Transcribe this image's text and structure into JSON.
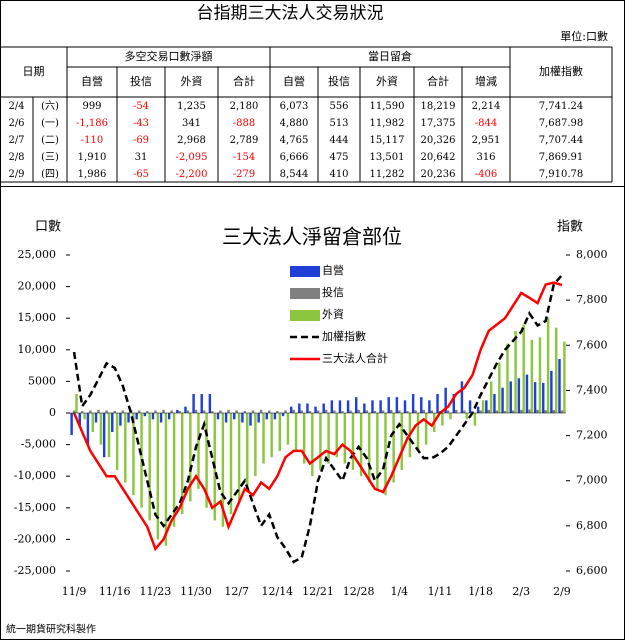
{
  "table": {
    "title": "台指期三大法人交易狀況",
    "unit": "單位:口數",
    "headers": {
      "date": "日期",
      "group1": "多空交易口數淨額",
      "group2": "當日留倉",
      "index": "加權指數",
      "sub1": [
        "自營",
        "投信",
        "外資",
        "合計"
      ],
      "sub2": [
        "自營",
        "投信",
        "外資",
        "合計",
        "增減"
      ]
    },
    "rows": [
      [
        "2/4",
        "(六)",
        "999",
        "-54",
        "1,235",
        "2,180",
        "6,073",
        "556",
        "11,590",
        "18,219",
        "2,214",
        "7,741.24"
      ],
      [
        "2/6",
        "(一)",
        "-1,186",
        "-43",
        "341",
        "-888",
        "4,880",
        "513",
        "11,982",
        "17,375",
        "-844",
        "7,687.98"
      ],
      [
        "2/7",
        "(二)",
        "-110",
        "-69",
        "2,968",
        "2,789",
        "4,765",
        "444",
        "15,117",
        "20,326",
        "2,951",
        "7,707.44"
      ],
      [
        "2/8",
        "(三)",
        "1,910",
        "31",
        "-2,095",
        "-154",
        "6,666",
        "475",
        "13,501",
        "20,642",
        "316",
        "7,869.91"
      ],
      [
        "2/9",
        "(四)",
        "1,986",
        "-65",
        "-2,200",
        "-279",
        "8,544",
        "410",
        "11,282",
        "20,236",
        "-406",
        "7,910.78"
      ]
    ]
  },
  "chart_data": {
    "type": "combo",
    "title": "三大法人淨留倉部位",
    "ylabel": "口數",
    "y2label": "指數",
    "footer": "統一期貨研究科製作",
    "categories": [
      "11/9",
      null,
      null,
      null,
      null,
      "11/16",
      null,
      null,
      null,
      null,
      "11/23",
      null,
      null,
      null,
      null,
      "11/30",
      null,
      null,
      null,
      null,
      "12/7",
      null,
      null,
      null,
      null,
      "12/14",
      null,
      null,
      null,
      null,
      "12/21",
      null,
      null,
      null,
      null,
      "12/28",
      null,
      null,
      null,
      null,
      "1/4",
      null,
      null,
      null,
      null,
      "1/11",
      null,
      null,
      null,
      null,
      "1/18",
      null,
      null,
      null,
      null,
      "2/3",
      null,
      null,
      null,
      null,
      "2/9"
    ],
    "ylim": [
      -25000,
      25000
    ],
    "yticks": [
      {
        "value": 25000,
        "label": "25,000"
      },
      {
        "value": 20000,
        "label": "20,000"
      },
      {
        "value": 15000,
        "label": "15,000"
      },
      {
        "value": 10000,
        "label": "10,000"
      },
      {
        "value": 5000,
        "label": "5000"
      },
      0,
      {
        "value": -5000,
        "label": "-5,000"
      },
      {
        "value": -10000,
        "label": "-10,000"
      },
      {
        "value": -15000,
        "label": "-15,000"
      },
      {
        "value": -20000,
        "label": "-20,000"
      },
      {
        "value": -25000,
        "label": "-25,000"
      }
    ],
    "y2lim": [
      6600,
      8000
    ],
    "y2ticks": [
      {
        "value": 8000,
        "label": "8,000"
      },
      {
        "value": 7800,
        "label": "7,800"
      },
      {
        "value": 7600,
        "label": "7,600"
      },
      {
        "value": 7400,
        "label": "7,400"
      },
      {
        "value": 7200,
        "label": "7,200"
      },
      {
        "value": 7000,
        "label": "7,000"
      },
      {
        "value": 6800,
        "label": "6,800"
      },
      {
        "value": 6600,
        "label": "6,600"
      }
    ],
    "series": [
      {
        "name": "自營",
        "kind": "bar",
        "color": "#1f3fd6",
        "values": [
          -3500,
          -2000,
          -5000,
          -1500,
          -7000,
          -3000,
          -2000,
          -1500,
          -1000,
          -500,
          -1000,
          -1500,
          -1000,
          500,
          1000,
          3000,
          3000,
          3000,
          -1000,
          -1500,
          -1000,
          -1500,
          -2000,
          -1500,
          -1000,
          -1000,
          -500,
          1000,
          1500,
          1500,
          1000,
          1500,
          2000,
          2000,
          2000,
          2500,
          1500,
          2000,
          2000,
          2500,
          2500,
          2000,
          3000,
          2500,
          2000,
          3000,
          4000,
          3000,
          5000,
          2000,
          1000,
          2000,
          3000,
          4000,
          5000,
          5500,
          6073,
          4880,
          4765,
          6666,
          8544
        ]
      },
      {
        "name": "投信",
        "kind": "bar",
        "color": "#808080",
        "values": [
          400,
          300,
          400,
          500,
          400,
          300,
          400,
          500,
          400,
          300,
          400,
          500,
          400,
          300,
          400,
          500,
          400,
          300,
          400,
          500,
          400,
          300,
          400,
          500,
          400,
          300,
          400,
          500,
          400,
          300,
          400,
          500,
          400,
          300,
          400,
          500,
          400,
          300,
          400,
          500,
          400,
          300,
          400,
          500,
          400,
          300,
          400,
          500,
          400,
          300,
          400,
          500,
          400,
          300,
          400,
          500,
          556,
          513,
          444,
          475,
          410
        ]
      },
      {
        "name": "外資",
        "kind": "bar",
        "color": "#8cc63f",
        "values": [
          3000,
          -1000,
          -3000,
          -5000,
          -7000,
          -9000,
          -11000,
          -13000,
          -15000,
          -17000,
          -20000,
          -21000,
          -18000,
          -16000,
          -14000,
          -12000,
          -15000,
          -17000,
          -18000,
          -16000,
          -14000,
          -12000,
          -10000,
          -8000,
          -7000,
          -6000,
          -5000,
          -6000,
          -8000,
          -10000,
          -9000,
          -8000,
          -7000,
          -8000,
          -9000,
          -10000,
          -11000,
          -12000,
          -13000,
          -11000,
          -9000,
          -7000,
          -6000,
          -5000,
          -3000,
          -2000,
          -1000,
          0,
          -1000,
          -2000,
          2000,
          5000,
          8000,
          11000,
          13000,
          14000,
          11590,
          11982,
          15117,
          13501,
          11282
        ]
      },
      {
        "name": "加權指數",
        "kind": "line",
        "dash": true,
        "axis": "y2",
        "color": "#000000",
        "values": [
          7570,
          7330,
          7380,
          7450,
          7520,
          7500,
          7420,
          7300,
          7150,
          7000,
          6850,
          6800,
          6850,
          6900,
          7000,
          7150,
          7250,
          7100,
          6950,
          6900,
          6950,
          7000,
          6900,
          6800,
          6850,
          6750,
          6700,
          6640,
          6660,
          6800,
          7000,
          7100,
          7050,
          7000,
          7100,
          7150,
          7100,
          7000,
          7050,
          7200,
          7250,
          7200,
          7150,
          7100,
          7100,
          7120,
          7150,
          7200,
          7250,
          7300,
          7380,
          7450,
          7520,
          7580,
          7620,
          7660,
          7741.24,
          7687.98,
          7707.44,
          7869.91,
          7910.78
        ]
      },
      {
        "name": "三大法人合計",
        "kind": "line",
        "color": "#ff0000",
        "values": [
          0,
          -3000,
          -6000,
          -8000,
          -10000,
          -10000,
          -12000,
          -14000,
          -16000,
          -18000,
          -21500,
          -20000,
          -17000,
          -15000,
          -12000,
          -10000,
          -12000,
          -15000,
          -14000,
          -18000,
          -15000,
          -12000,
          -13000,
          -11000,
          -12000,
          -10000,
          -7000,
          -6000,
          -6000,
          -8000,
          -7000,
          -6000,
          -6500,
          -5000,
          -6000,
          -8000,
          -10000,
          -12000,
          -12500,
          -10000,
          -7000,
          -4000,
          -2000,
          -1000,
          -2000,
          0,
          1000,
          3000,
          4000,
          6000,
          10000,
          13000,
          14000,
          15000,
          17000,
          19000,
          18219,
          17375,
          20326,
          20642,
          20236
        ]
      }
    ]
  }
}
